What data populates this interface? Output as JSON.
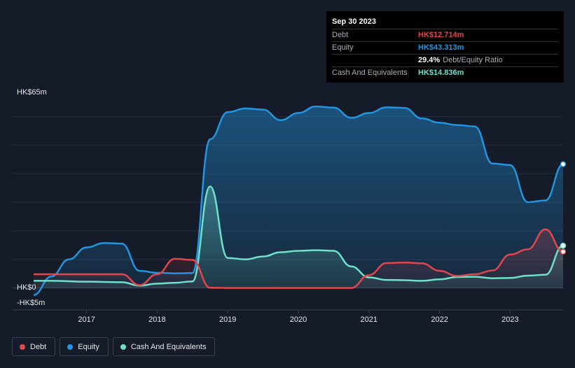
{
  "tooltip": {
    "date": "Sep 30 2023",
    "debt_label": "Debt",
    "debt_value": "HK$12.714m",
    "equity_label": "Equity",
    "equity_value": "HK$43.313m",
    "ratio_value": "29.4%",
    "ratio_label": "Debt/Equity Ratio",
    "cash_label": "Cash And Equivalents",
    "cash_value": "HK$14.836m"
  },
  "legend": {
    "debt": "Debt",
    "equity": "Equity",
    "cash": "Cash And Equivalents"
  },
  "colors": {
    "debt": "#e0474c",
    "equity": "#2394df",
    "cash": "#6fe0ca",
    "background": "#151b28"
  },
  "chart_data": {
    "type": "line",
    "x_range": [
      2016.25,
      2023.75
    ],
    "ylim": [
      -5,
      65
    ],
    "y_tick_labels": [
      "HK$65m",
      "HK$0",
      "-HK$5m"
    ],
    "y_ticks": [
      65,
      0,
      -5
    ],
    "x_ticks": [
      "2017",
      "2018",
      "2019",
      "2020",
      "2021",
      "2022",
      "2023"
    ],
    "x_tick_values": [
      2017,
      2018,
      2019,
      2020,
      2021,
      2022,
      2023
    ],
    "series": [
      {
        "name": "Debt",
        "x": [
          2016.25,
          2017.5,
          2017.75,
          2018.0,
          2018.25,
          2018.5,
          2018.75,
          2019.0,
          2019.5,
          2020.0,
          2020.5,
          2020.75,
          2021.0,
          2021.25,
          2021.5,
          2021.75,
          2022.0,
          2022.25,
          2022.5,
          2022.75,
          2023.0,
          2023.25,
          2023.5,
          2023.75
        ],
        "values": [
          4.8,
          4.8,
          1.0,
          4.8,
          10.2,
          9.8,
          0.1,
          0.0,
          0.0,
          0.0,
          0.0,
          0.0,
          4.5,
          8.7,
          8.9,
          8.6,
          6.0,
          4.2,
          4.8,
          6.1,
          11.7,
          13.5,
          20.5,
          12.7
        ]
      },
      {
        "name": "Equity",
        "x": [
          2016.25,
          2016.5,
          2016.75,
          2017.0,
          2017.25,
          2017.5,
          2017.75,
          2018.0,
          2018.25,
          2018.5,
          2018.75,
          2019.0,
          2019.25,
          2019.5,
          2019.75,
          2020.0,
          2020.25,
          2020.5,
          2020.75,
          2021.0,
          2021.25,
          2021.5,
          2021.75,
          2022.0,
          2022.25,
          2022.5,
          2022.75,
          2023.0,
          2023.25,
          2023.5,
          2023.75
        ],
        "values": [
          -2.5,
          4.0,
          10.0,
          14.2,
          15.7,
          15.5,
          6.0,
          5.3,
          5.1,
          5.2,
          52.0,
          61.5,
          62.8,
          62.4,
          58.7,
          61.2,
          63.5,
          63.1,
          59.5,
          61.2,
          63.2,
          63.0,
          59.3,
          57.8,
          57.0,
          56.5,
          43.5,
          43.0,
          30.0,
          30.6,
          43.3
        ]
      },
      {
        "name": "Cash And Equivalents",
        "x": [
          2016.25,
          2016.5,
          2017.0,
          2017.5,
          2017.75,
          2018.0,
          2018.25,
          2018.5,
          2018.75,
          2019.0,
          2019.25,
          2019.5,
          2019.75,
          2020.0,
          2020.25,
          2020.5,
          2020.75,
          2021.0,
          2021.25,
          2021.5,
          2021.75,
          2022.0,
          2022.25,
          2022.5,
          2022.75,
          2023.0,
          2023.25,
          2023.5,
          2023.75
        ],
        "values": [
          2.5,
          2.5,
          2.2,
          2.0,
          0.8,
          1.5,
          1.8,
          2.3,
          35.5,
          10.5,
          10.0,
          11.0,
          12.5,
          13.0,
          13.2,
          13.0,
          7.5,
          3.7,
          2.8,
          2.7,
          2.5,
          3.0,
          3.8,
          3.9,
          3.4,
          3.5,
          4.3,
          4.6,
          14.8
        ]
      }
    ]
  }
}
